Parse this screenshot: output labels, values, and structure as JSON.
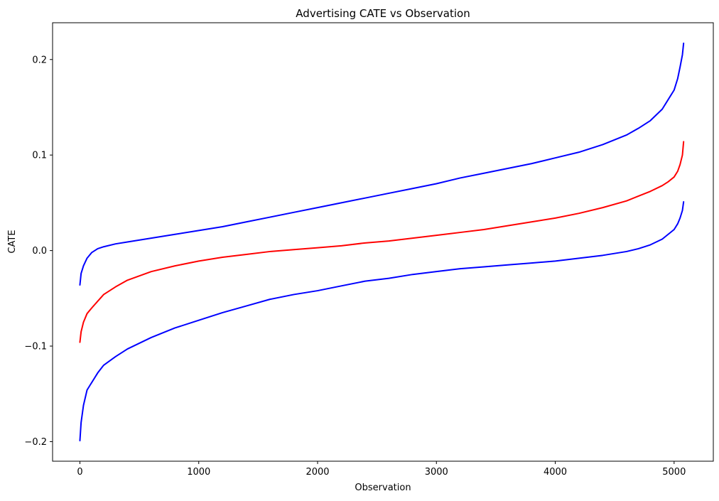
{
  "chart_data": {
    "type": "line",
    "title": "Advertising CATE vs Observation",
    "xlabel": "Observation",
    "ylabel": "CATE",
    "xlim": [
      -230,
      5330
    ],
    "ylim": [
      -0.2205,
      0.2385
    ],
    "xticks": [
      0,
      1000,
      2000,
      3000,
      4000,
      5000
    ],
    "xtick_labels": [
      "0",
      "1000",
      "2000",
      "3000",
      "4000",
      "5000"
    ],
    "yticks": [
      -0.2,
      -0.1,
      0.0,
      0.1,
      0.2
    ],
    "ytick_labels": [
      "−0.2",
      "−0.1",
      "0.0",
      "0.1",
      "0.2"
    ],
    "grid": false,
    "legend": false,
    "series": [
      {
        "color": "#0000ff",
        "x": [
          0,
          10,
          30,
          60,
          100,
          150,
          200,
          300,
          400,
          600,
          800,
          1000,
          1200,
          1400,
          1600,
          1800,
          2000,
          2200,
          2400,
          2600,
          2800,
          3000,
          3200,
          3400,
          3600,
          3800,
          4000,
          4200,
          4400,
          4600,
          4700,
          4800,
          4900,
          4950,
          5000,
          5030,
          5050,
          5070,
          5080
        ],
        "y": [
          -0.036,
          -0.024,
          -0.016,
          -0.008,
          -0.002,
          0.002,
          0.004,
          0.007,
          0.009,
          0.013,
          0.017,
          0.021,
          0.025,
          0.03,
          0.035,
          0.04,
          0.045,
          0.05,
          0.055,
          0.06,
          0.065,
          0.07,
          0.076,
          0.081,
          0.086,
          0.091,
          0.097,
          0.103,
          0.111,
          0.121,
          0.128,
          0.136,
          0.148,
          0.158,
          0.168,
          0.18,
          0.192,
          0.205,
          0.217
        ]
      },
      {
        "color": "#ff0000",
        "x": [
          0,
          10,
          30,
          60,
          100,
          150,
          200,
          300,
          400,
          600,
          800,
          1000,
          1200,
          1400,
          1600,
          1800,
          2000,
          2200,
          2400,
          2600,
          2800,
          3000,
          3200,
          3400,
          3600,
          3800,
          4000,
          4200,
          4400,
          4600,
          4700,
          4800,
          4900,
          4950,
          5000,
          5030,
          5050,
          5070,
          5080
        ],
        "y": [
          -0.096,
          -0.085,
          -0.075,
          -0.066,
          -0.06,
          -0.053,
          -0.046,
          -0.038,
          -0.031,
          -0.022,
          -0.016,
          -0.011,
          -0.007,
          -0.004,
          -0.001,
          0.001,
          0.003,
          0.005,
          0.008,
          0.01,
          0.013,
          0.016,
          0.019,
          0.022,
          0.026,
          0.03,
          0.034,
          0.039,
          0.045,
          0.052,
          0.057,
          0.062,
          0.068,
          0.072,
          0.077,
          0.083,
          0.09,
          0.1,
          0.114
        ]
      },
      {
        "color": "#0000ff",
        "x": [
          0,
          10,
          30,
          60,
          100,
          150,
          200,
          300,
          400,
          600,
          800,
          1000,
          1200,
          1400,
          1600,
          1800,
          2000,
          2200,
          2400,
          2600,
          2800,
          3000,
          3200,
          3400,
          3600,
          3800,
          4000,
          4200,
          4400,
          4600,
          4700,
          4800,
          4900,
          4950,
          5000,
          5030,
          5050,
          5070,
          5080
        ],
        "y": [
          -0.199,
          -0.18,
          -0.162,
          -0.146,
          -0.138,
          -0.128,
          -0.12,
          -0.111,
          -0.103,
          -0.091,
          -0.081,
          -0.073,
          -0.065,
          -0.058,
          -0.051,
          -0.046,
          -0.042,
          -0.037,
          -0.032,
          -0.029,
          -0.025,
          -0.022,
          -0.019,
          -0.017,
          -0.015,
          -0.013,
          -0.011,
          -0.008,
          -0.005,
          -0.001,
          0.002,
          0.006,
          0.012,
          0.017,
          0.022,
          0.028,
          0.034,
          0.042,
          0.051
        ]
      }
    ]
  }
}
